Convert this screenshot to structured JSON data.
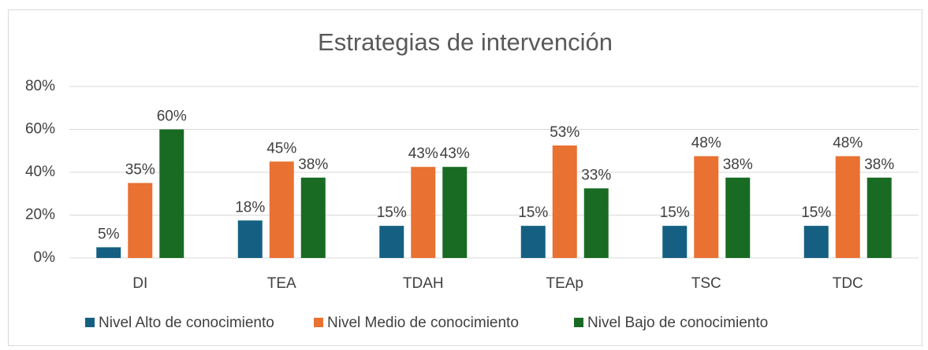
{
  "chart_data": {
    "type": "bar",
    "title": "Estrategias de intervención",
    "categories": [
      "DI",
      "TEA",
      "TDAH",
      "TEAp",
      "TSC",
      "TDC"
    ],
    "series": [
      {
        "name": "Nivel Alto de conocimiento",
        "color": "#156082",
        "values": [
          5,
          17.5,
          15,
          15,
          15,
          15
        ],
        "value_labels": [
          "5%",
          "18%",
          "15%",
          "15%",
          "15%",
          "15%"
        ]
      },
      {
        "name": "Nivel Medio de conocimiento",
        "color": "#e97132",
        "values": [
          35,
          45,
          42.5,
          52.5,
          47.5,
          47.5
        ],
        "value_labels": [
          "35%",
          "45%",
          "43%",
          "53%",
          "48%",
          "48%"
        ]
      },
      {
        "name": "Nivel Bajo de conocimiento",
        "color": "#196b24",
        "values": [
          60,
          37.5,
          42.5,
          32.5,
          37.5,
          37.5
        ],
        "value_labels": [
          "60%",
          "38%",
          "43%",
          "33%",
          "38%",
          "38%"
        ]
      }
    ],
    "ylim": [
      0,
      80
    ],
    "yticks": [
      {
        "value": 0,
        "label": "0%"
      },
      {
        "value": 20,
        "label": "20%"
      },
      {
        "value": 40,
        "label": "40%"
      },
      {
        "value": 60,
        "label": "60%"
      },
      {
        "value": 80,
        "label": "80%"
      }
    ],
    "grid": true,
    "legend": "bottom"
  }
}
